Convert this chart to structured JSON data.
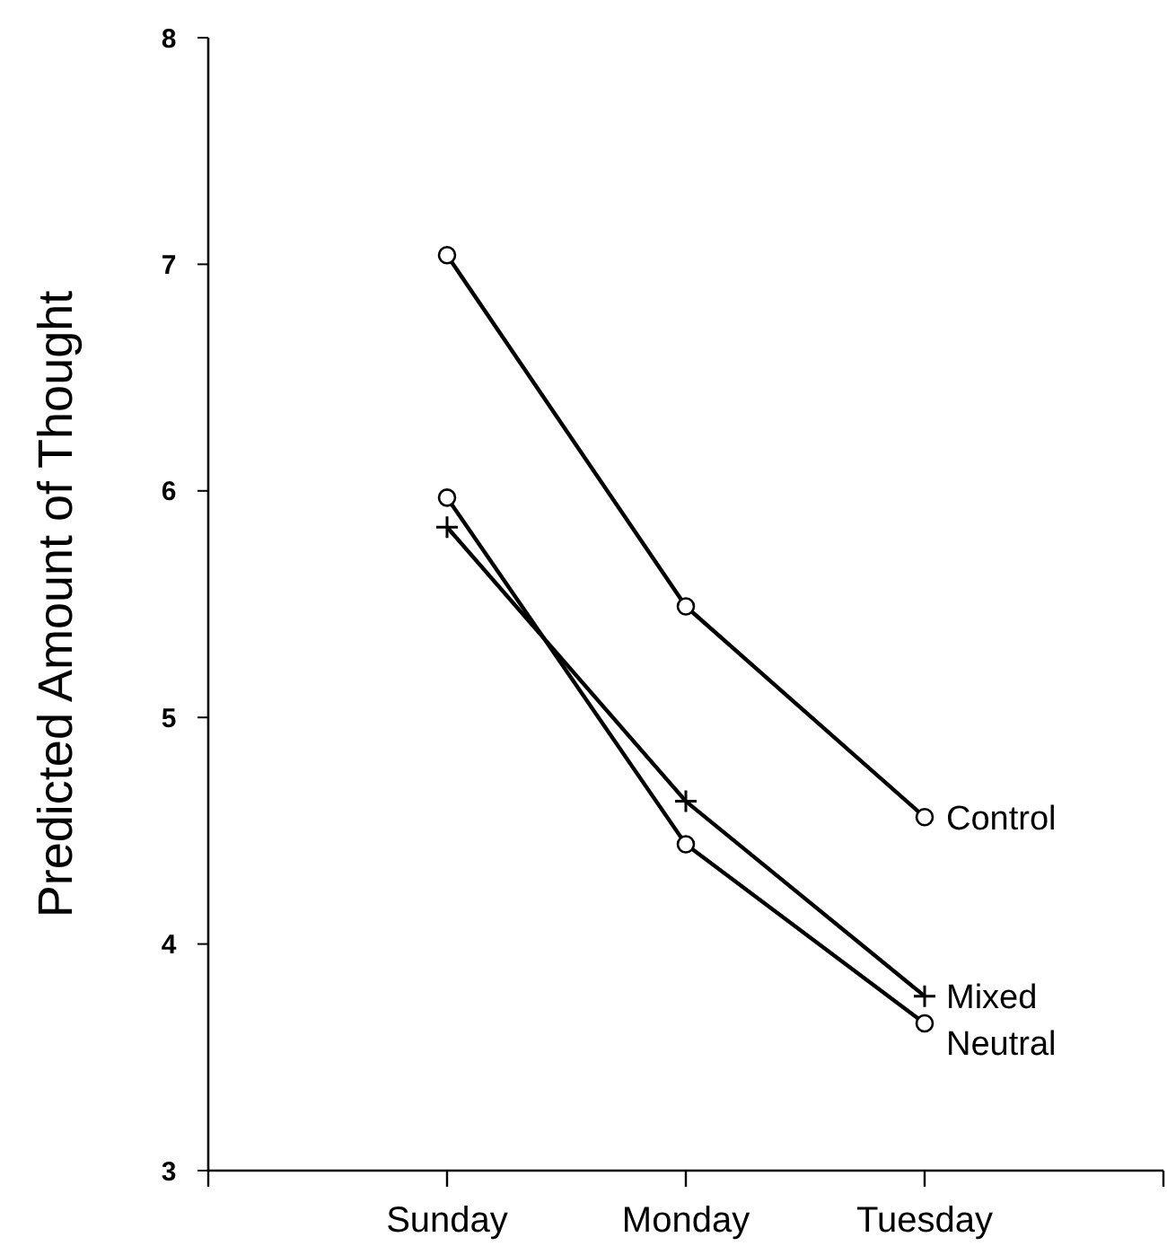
{
  "chart_data": {
    "type": "line",
    "ylabel": "Predicted Amount of Thought",
    "categories": [
      null,
      "Sunday",
      "Monday",
      "Tuesday",
      null
    ],
    "ylim": [
      3,
      8
    ],
    "yticks": [
      3,
      4,
      5,
      6,
      7,
      8
    ],
    "grid": false,
    "series": [
      {
        "name": "Control",
        "color": "#000000",
        "marker": "circle",
        "values": [
          null,
          7.04,
          5.49,
          4.56,
          null
        ]
      },
      {
        "name": "Mixed",
        "color": "#000000",
        "marker": "cross",
        "values": [
          null,
          5.84,
          4.63,
          3.77,
          null
        ]
      },
      {
        "name": "Neutral",
        "color": "#000000",
        "marker": "circle",
        "values": [
          null,
          5.97,
          4.44,
          3.65,
          null
        ]
      }
    ]
  }
}
